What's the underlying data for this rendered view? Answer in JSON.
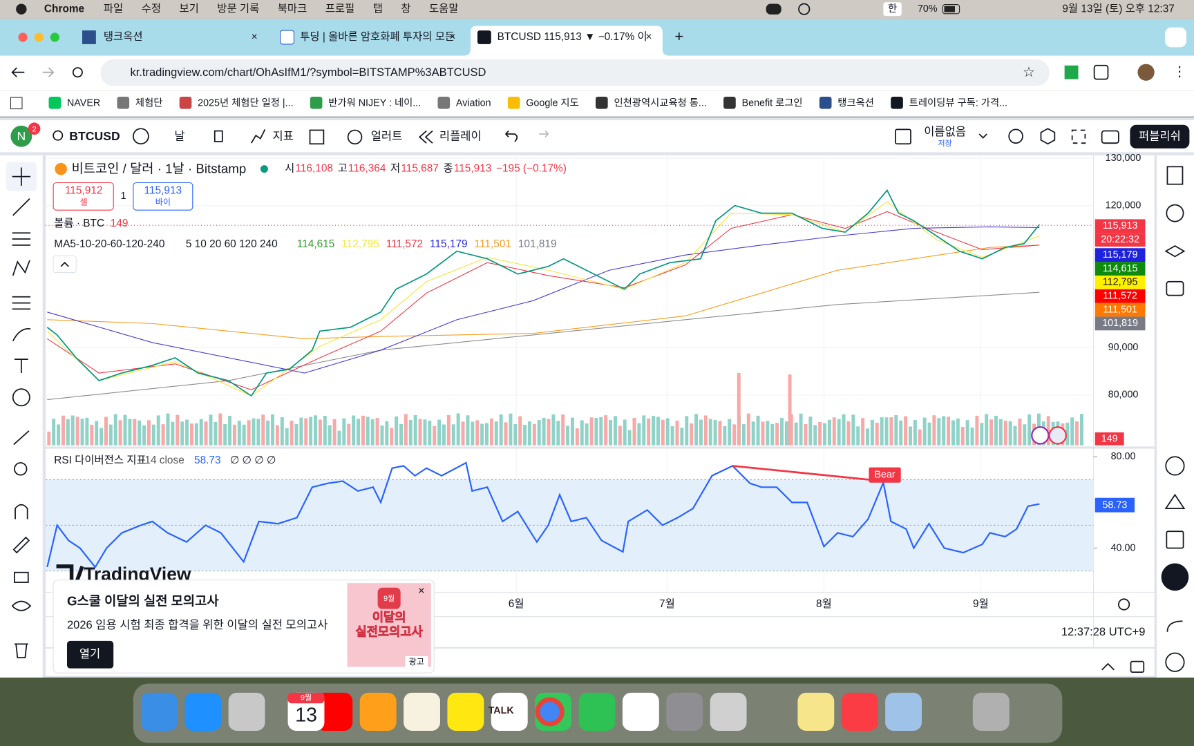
{
  "menubar": {
    "app": "Chrome",
    "menus": [
      "파일",
      "수정",
      "보기",
      "방문 기록",
      "북마크",
      "프로필",
      "탭",
      "창",
      "도움말"
    ],
    "input_source": "한",
    "battery": "70%",
    "clock": "9월 13일 (토) 오후 12:37"
  },
  "tabs": [
    {
      "title": "탱크옥션"
    },
    {
      "title": "투딩 | 올바른 암호화폐 투자의 모든"
    },
    {
      "title": "BTCUSD 115,913 ▼ −0.17% 이"
    }
  ],
  "address": "kr.tradingview.com/chart/OhAsIfM1/?symbol=BITSTAMP%3ABTCUSD",
  "bookmarks": [
    "NAVER",
    "체험단",
    "2025년 체험단 일정 |...",
    "반가워 NIJEY  : 네이...",
    "Aviation",
    "Google 지도",
    "인천광역시교육청 통...",
    "Benefit 로그인",
    "탱크옥션",
    "트레이딩뷰 구독: 가격..."
  ],
  "toolbar": {
    "avatar": "N",
    "notifications": "2",
    "symbol": "BTCUSD",
    "interval": "날",
    "indicators": "지표",
    "alert": "얼러트",
    "replay": "리플레이",
    "layout": "이름없음",
    "saved": "저장",
    "publish": "퍼블리쉬"
  },
  "chart": {
    "title": "비트코인 / 달러 · 1날 · Bitstamp",
    "ohlc": [
      {
        "label": "시",
        "value": "116,108"
      },
      {
        "label": "고",
        "value": "116,364"
      },
      {
        "label": "저",
        "value": "115,687"
      },
      {
        "label": "종",
        "value": "115,913"
      }
    ],
    "change": "−195 (−0.17%)",
    "sell": {
      "price": "115,912",
      "label": "셀"
    },
    "quantity": "1",
    "buy": {
      "price": "115,913",
      "label": "바이"
    },
    "volume": {
      "label": "볼륨 · BTC",
      "value": "149"
    },
    "ma": {
      "label": "MA5-10-20-60-120-240",
      "periods": "5 10 20 60 120 240",
      "values": [
        {
          "text": "114,615",
          "color": "#2e9d2e"
        },
        {
          "text": "112,795",
          "color": "#f5e63a"
        },
        {
          "text": "111,572",
          "color": "#f23645"
        },
        {
          "text": "115,179",
          "color": "#2a2ae0"
        },
        {
          "text": "111,501",
          "color": "#f59d1c"
        },
        {
          "text": "101,819",
          "color": "#787b86"
        }
      ]
    },
    "price_ticks": [
      {
        "value": 130000,
        "label": "130,000"
      },
      {
        "value": 120000,
        "label": "120,000"
      },
      {
        "value": 90000,
        "label": "90,000"
      },
      {
        "value": 80000,
        "label": "80,000"
      }
    ],
    "price_badges": [
      {
        "text": "115,913",
        "color": "#f23645"
      },
      {
        "text": "20:22:32",
        "color": "#f23645"
      },
      {
        "text": "115,179",
        "color": "#1e22dc"
      },
      {
        "text": "114,615",
        "color": "#0e8a0e"
      },
      {
        "text": "112,795",
        "color": "#ffef00"
      },
      {
        "text": "111,572",
        "color": "#ff0000"
      },
      {
        "text": "111,501",
        "color": "#ff7800"
      },
      {
        "text": "101,819",
        "color": "#787b86"
      }
    ],
    "volume_badge": "149"
  },
  "rsi": {
    "label": "RSI 다이버전스 지표",
    "params": "14 close",
    "value": "58.73",
    "flags": "∅ ∅ ∅ ∅",
    "ticks": [
      {
        "value": 80,
        "label": "80.00"
      },
      {
        "value": 40,
        "label": "40.00"
      }
    ],
    "divergence": "Bear"
  },
  "time_axis": [
    "6월",
    "7월",
    "8월",
    "9월"
  ],
  "clock": "12:37:28 UTC+9",
  "watermark": "TradingView",
  "ad": {
    "title": "G스쿨 이달의 실전 모의고사",
    "text": "2026 임용 시험 최종 합격을 위한 이달의 실전 모의고사",
    "button": "열기",
    "image_month": "9월",
    "image_line1": "이달의",
    "image_line2": "실전모의고사",
    "badge": "광고"
  },
  "dock": {
    "calendar_month": "9월",
    "calendar_day": "13",
    "kakao": "TALK"
  }
}
